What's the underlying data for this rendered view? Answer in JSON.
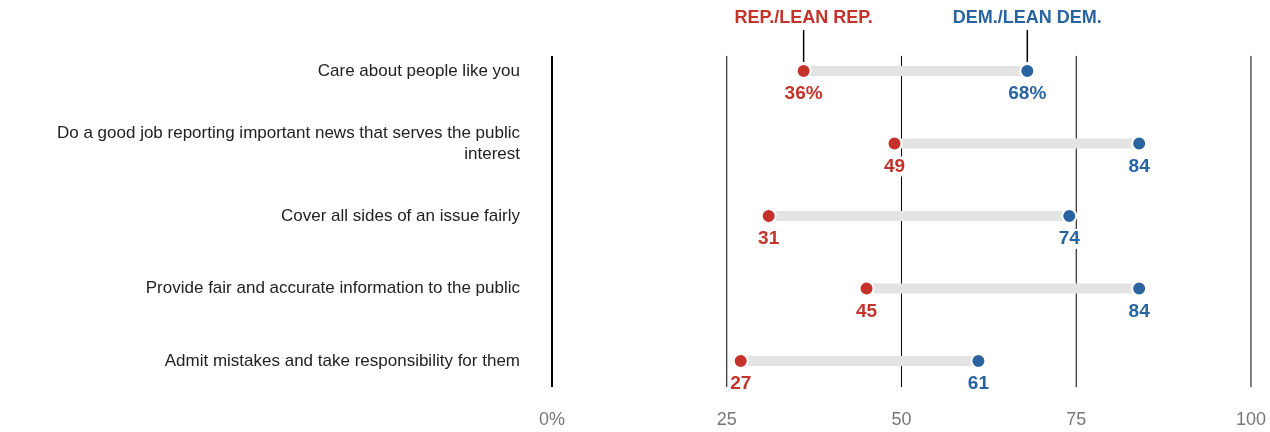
{
  "chart_data": {
    "type": "scatter",
    "orientation": "horizontal",
    "categories": [
      "Care about people like you",
      "Do a good job reporting important news that serves the public interest",
      "Cover all sides of an issue fairly",
      "Provide fair and accurate information to the public",
      "Admit mistakes and take responsibility for them"
    ],
    "series": [
      {
        "name": "REP./LEAN REP.",
        "color": "#c4322a",
        "values": [
          36,
          49,
          31,
          45,
          27
        ],
        "value_labels": [
          "36%",
          "49",
          "31",
          "45",
          "27"
        ]
      },
      {
        "name": "DEM./LEAN DEM.",
        "color": "#2a64a0",
        "values": [
          68,
          84,
          74,
          84,
          61
        ],
        "value_labels": [
          "68%",
          "84",
          "74",
          "84",
          "61"
        ]
      }
    ],
    "xlim": [
      0,
      100
    ],
    "xticks": [
      {
        "value": 0,
        "label": "0%"
      },
      25,
      50,
      75,
      100
    ],
    "grid": "x",
    "legend": false,
    "marker": "circle"
  }
}
